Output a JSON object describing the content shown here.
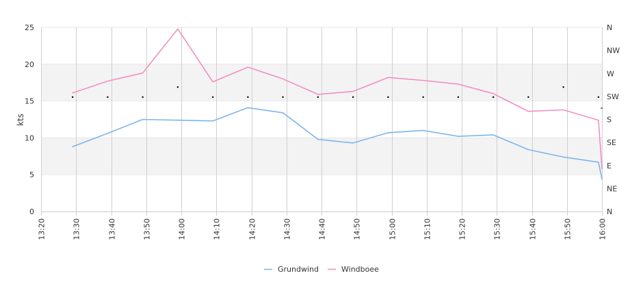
{
  "chart_data": {
    "type": "line",
    "title": "",
    "xlabel": "",
    "ylabel": "kts",
    "ylim": [
      0,
      25
    ],
    "y_ticks": [
      0,
      5,
      10,
      15,
      20,
      25
    ],
    "x_ticks": [
      "13:20",
      "13:30",
      "13:40",
      "13:50",
      "14:00",
      "14:10",
      "14:20",
      "14:30",
      "14:40",
      "14:50",
      "15:00",
      "15:10",
      "15:20",
      "15:30",
      "15:40",
      "15:50",
      "16:00"
    ],
    "x_range": [
      "13:20",
      "16:00"
    ],
    "y2_ticks": [
      "N",
      "NE",
      "E",
      "SE",
      "S",
      "SW",
      "W",
      "NW",
      "N"
    ],
    "legend_position": "bottom",
    "grid": "vertical lines, alternating horizontal bands",
    "series": [
      {
        "name": "Grundwind",
        "color": "#7cb5ec",
        "points": [
          [
            "13:29",
            8.8
          ],
          [
            "13:39",
            10.6
          ],
          [
            "13:49",
            12.5
          ],
          [
            "13:59",
            12.4
          ],
          [
            "14:09",
            12.3
          ],
          [
            "14:19",
            14.1
          ],
          [
            "14:29",
            13.4
          ],
          [
            "14:39",
            9.8
          ],
          [
            "14:49",
            9.3
          ],
          [
            "14:59",
            10.7
          ],
          [
            "15:09",
            11.0
          ],
          [
            "15:19",
            10.2
          ],
          [
            "15:29",
            10.4
          ],
          [
            "15:39",
            8.4
          ],
          [
            "15:49",
            7.4
          ],
          [
            "15:59",
            6.7
          ],
          [
            "16:00",
            4.4
          ]
        ]
      },
      {
        "name": "Windboee",
        "color": "#f28fc0",
        "points": [
          [
            "13:29",
            16.1
          ],
          [
            "13:39",
            17.7
          ],
          [
            "13:49",
            18.8
          ],
          [
            "13:59",
            24.8
          ],
          [
            "14:09",
            17.6
          ],
          [
            "14:19",
            19.6
          ],
          [
            "14:29",
            18.0
          ],
          [
            "14:39",
            15.9
          ],
          [
            "14:49",
            16.3
          ],
          [
            "14:59",
            18.2
          ],
          [
            "15:09",
            17.8
          ],
          [
            "15:19",
            17.3
          ],
          [
            "15:29",
            16.0
          ],
          [
            "15:39",
            13.6
          ],
          [
            "15:49",
            13.8
          ],
          [
            "15:59",
            12.4
          ],
          [
            "16:00",
            5.8
          ]
        ]
      }
    ],
    "direction_markers": {
      "color": "#000000",
      "points": [
        [
          "13:29",
          "SW"
        ],
        [
          "13:39",
          "SW"
        ],
        [
          "13:49",
          "SW"
        ],
        [
          "13:59",
          "W"
        ],
        [
          "14:09",
          "SW"
        ],
        [
          "14:19",
          "SW"
        ],
        [
          "14:29",
          "SW"
        ],
        [
          "14:39",
          "SW"
        ],
        [
          "14:49",
          "SW"
        ],
        [
          "14:59",
          "SW"
        ],
        [
          "15:09",
          "SW"
        ],
        [
          "15:19",
          "SW"
        ],
        [
          "15:29",
          "SW"
        ],
        [
          "15:39",
          "SW"
        ],
        [
          "15:49",
          "W"
        ],
        [
          "15:59",
          "SW"
        ]
      ]
    }
  }
}
